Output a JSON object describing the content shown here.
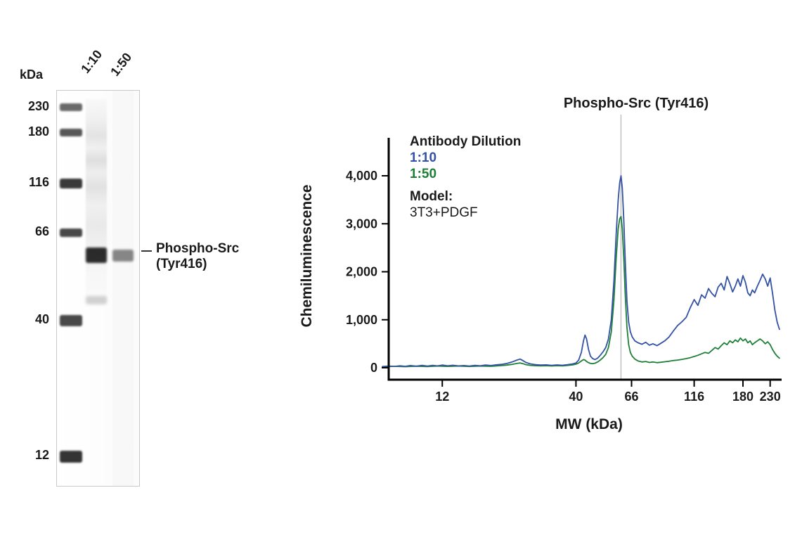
{
  "blot": {
    "kda_label": "kDa",
    "ladder_labels": [
      "230",
      "180",
      "116",
      "66",
      "40",
      "12"
    ],
    "lane_labels": [
      "1:10",
      "1:50"
    ],
    "band_annotation_line1": "Phospho-Src",
    "band_annotation_line2": "(Tyr416)"
  },
  "chart": {
    "title": "Phospho-Src (Tyr416)",
    "ylabel": "Chemiluminescence",
    "xlabel": "MW (kDa)",
    "legend": {
      "heading": "Antibody Dilution",
      "items": [
        {
          "label": "1:10",
          "color": "#3352a3"
        },
        {
          "label": "1:50",
          "color": "#1e8038"
        }
      ],
      "model_heading": "Model:",
      "model_value": "3T3+PDGF"
    }
  },
  "chart_data": {
    "type": "line",
    "title": "Phospho-Src (Tyr416)",
    "xlabel": "MW (kDa)",
    "ylabel": "Chemiluminescence",
    "x_scale": "log",
    "xlim": [
      7.5,
      255
    ],
    "ylim": [
      0,
      4400
    ],
    "grid": false,
    "legend_position": "top-left-inside",
    "marker_line_mw": 60,
    "marker_line_color": "#b3b3b3",
    "axis_color": "#000000",
    "x_ticks": [
      {
        "v": 12,
        "label": "12"
      },
      {
        "v": 40,
        "label": "40"
      },
      {
        "v": 66,
        "label": "66"
      },
      {
        "v": 116,
        "label": "116"
      },
      {
        "v": 180,
        "label": "180"
      },
      {
        "v": 230,
        "label": "230"
      }
    ],
    "y_ticks": [
      {
        "v": 0,
        "label": "0"
      },
      {
        "v": 1000,
        "label": "1,000"
      },
      {
        "v": 2000,
        "label": "2,000"
      },
      {
        "v": 3000,
        "label": "3,000"
      },
      {
        "v": 4000,
        "label": "4,000"
      }
    ],
    "series": [
      {
        "name": "1:50",
        "color": "#1e8038",
        "points": [
          [
            7.0,
            20
          ],
          [
            7.8,
            30
          ],
          [
            8.6,
            22
          ],
          [
            9.5,
            32
          ],
          [
            10.5,
            25
          ],
          [
            11.5,
            35
          ],
          [
            12.6,
            28
          ],
          [
            13.9,
            35
          ],
          [
            15.3,
            26
          ],
          [
            16.9,
            35
          ],
          [
            18.6,
            30
          ],
          [
            20.5,
            45
          ],
          [
            21.5,
            55
          ],
          [
            22.5,
            70
          ],
          [
            23.5,
            90
          ],
          [
            24.2,
            100
          ],
          [
            24.8,
            85
          ],
          [
            25.5,
            65
          ],
          [
            26.5,
            50
          ],
          [
            27.8,
            42
          ],
          [
            29.2,
            38
          ],
          [
            30.6,
            42
          ],
          [
            32.1,
            36
          ],
          [
            33.7,
            42
          ],
          [
            35.4,
            38
          ],
          [
            37.1,
            48
          ],
          [
            38.9,
            60
          ],
          [
            40.0,
            75
          ],
          [
            41.0,
            100
          ],
          [
            42.0,
            140
          ],
          [
            42.8,
            170
          ],
          [
            43.4,
            160
          ],
          [
            44.0,
            130
          ],
          [
            44.8,
            105
          ],
          [
            45.6,
            90
          ],
          [
            46.5,
            85
          ],
          [
            47.5,
            95
          ],
          [
            48.6,
            120
          ],
          [
            49.8,
            160
          ],
          [
            51.0,
            210
          ],
          [
            52.3,
            280
          ],
          [
            53.6,
            420
          ],
          [
            55.0,
            750
          ],
          [
            56.3,
            1400
          ],
          [
            57.5,
            2300
          ],
          [
            58.5,
            2900
          ],
          [
            59.3,
            3100
          ],
          [
            60.0,
            3150
          ],
          [
            60.7,
            2900
          ],
          [
            61.5,
            2300
          ],
          [
            62.4,
            1500
          ],
          [
            63.3,
            850
          ],
          [
            64.3,
            480
          ],
          [
            65.3,
            320
          ],
          [
            66.4,
            240
          ],
          [
            68.0,
            180
          ],
          [
            70.0,
            140
          ],
          [
            72.5,
            120
          ],
          [
            75.0,
            130
          ],
          [
            77.5,
            110
          ],
          [
            80.0,
            120
          ],
          [
            83.0,
            105
          ],
          [
            86.0,
            115
          ],
          [
            89.0,
            125
          ],
          [
            92.5,
            135
          ],
          [
            96.0,
            150
          ],
          [
            100,
            160
          ],
          [
            104,
            175
          ],
          [
            108,
            190
          ],
          [
            112,
            210
          ],
          [
            116,
            235
          ],
          [
            120,
            260
          ],
          [
            124,
            290
          ],
          [
            128,
            320
          ],
          [
            132,
            300
          ],
          [
            136,
            360
          ],
          [
            140,
            420
          ],
          [
            144,
            390
          ],
          [
            148,
            460
          ],
          [
            152,
            520
          ],
          [
            156,
            480
          ],
          [
            160,
            560
          ],
          [
            164,
            520
          ],
          [
            168,
            580
          ],
          [
            172,
            540
          ],
          [
            176,
            620
          ],
          [
            180,
            560
          ],
          [
            184,
            600
          ],
          [
            188,
            520
          ],
          [
            192,
            560
          ],
          [
            196,
            480
          ],
          [
            200,
            520
          ],
          [
            205,
            560
          ],
          [
            210,
            600
          ],
          [
            215,
            560
          ],
          [
            220,
            500
          ],
          [
            225,
            540
          ],
          [
            230,
            480
          ],
          [
            235,
            380
          ],
          [
            240,
            300
          ],
          [
            245,
            240
          ],
          [
            250,
            200
          ]
        ]
      },
      {
        "name": "1:10",
        "color": "#3352a3",
        "points": [
          [
            7.0,
            25
          ],
          [
            7.4,
            35
          ],
          [
            7.8,
            28
          ],
          [
            8.2,
            40
          ],
          [
            8.6,
            30
          ],
          [
            9.0,
            45
          ],
          [
            9.5,
            32
          ],
          [
            10.0,
            48
          ],
          [
            10.5,
            35
          ],
          [
            11.0,
            50
          ],
          [
            11.5,
            38
          ],
          [
            12.0,
            55
          ],
          [
            12.6,
            40
          ],
          [
            13.2,
            52
          ],
          [
            13.9,
            38
          ],
          [
            14.6,
            45
          ],
          [
            15.3,
            35
          ],
          [
            16.1,
            48
          ],
          [
            16.9,
            40
          ],
          [
            17.7,
            55
          ],
          [
            18.6,
            45
          ],
          [
            19.5,
            60
          ],
          [
            20.5,
            70
          ],
          [
            21.5,
            90
          ],
          [
            22.5,
            120
          ],
          [
            23.5,
            160
          ],
          [
            24.2,
            180
          ],
          [
            24.8,
            150
          ],
          [
            25.5,
            110
          ],
          [
            26.5,
            80
          ],
          [
            27.8,
            65
          ],
          [
            29.2,
            55
          ],
          [
            30.6,
            60
          ],
          [
            32.1,
            50
          ],
          [
            33.7,
            58
          ],
          [
            35.4,
            52
          ],
          [
            37.1,
            65
          ],
          [
            38.9,
            80
          ],
          [
            40.0,
            100
          ],
          [
            41.0,
            160
          ],
          [
            42.0,
            320
          ],
          [
            42.8,
            560
          ],
          [
            43.4,
            680
          ],
          [
            44.0,
            600
          ],
          [
            44.8,
            380
          ],
          [
            45.6,
            240
          ],
          [
            46.5,
            190
          ],
          [
            47.5,
            170
          ],
          [
            48.6,
            200
          ],
          [
            49.8,
            260
          ],
          [
            51.0,
            330
          ],
          [
            52.3,
            420
          ],
          [
            53.6,
            600
          ],
          [
            55.0,
            1000
          ],
          [
            56.3,
            1800
          ],
          [
            57.5,
            2800
          ],
          [
            58.5,
            3500
          ],
          [
            59.3,
            3850
          ],
          [
            60.0,
            4000
          ],
          [
            60.7,
            3750
          ],
          [
            61.5,
            3100
          ],
          [
            62.4,
            2200
          ],
          [
            63.3,
            1400
          ],
          [
            64.3,
            950
          ],
          [
            65.3,
            750
          ],
          [
            66.4,
            640
          ],
          [
            68.0,
            560
          ],
          [
            70.0,
            520
          ],
          [
            72.5,
            490
          ],
          [
            75.0,
            530
          ],
          [
            77.5,
            470
          ],
          [
            80.0,
            500
          ],
          [
            83.0,
            460
          ],
          [
            86.0,
            510
          ],
          [
            89.0,
            560
          ],
          [
            92.5,
            640
          ],
          [
            96.0,
            760
          ],
          [
            100,
            880
          ],
          [
            104,
            960
          ],
          [
            108,
            1050
          ],
          [
            112,
            1250
          ],
          [
            116,
            1420
          ],
          [
            120,
            1300
          ],
          [
            124,
            1520
          ],
          [
            128,
            1450
          ],
          [
            132,
            1650
          ],
          [
            136,
            1550
          ],
          [
            140,
            1480
          ],
          [
            144,
            1680
          ],
          [
            148,
            1760
          ],
          [
            152,
            1620
          ],
          [
            156,
            1900
          ],
          [
            160,
            1750
          ],
          [
            164,
            1580
          ],
          [
            168,
            1700
          ],
          [
            172,
            1850
          ],
          [
            176,
            1700
          ],
          [
            180,
            1920
          ],
          [
            184,
            1780
          ],
          [
            188,
            1560
          ],
          [
            192,
            1500
          ],
          [
            196,
            1620
          ],
          [
            200,
            1560
          ],
          [
            205,
            1700
          ],
          [
            210,
            1820
          ],
          [
            215,
            1950
          ],
          [
            220,
            1850
          ],
          [
            225,
            1700
          ],
          [
            230,
            1870
          ],
          [
            235,
            1550
          ],
          [
            240,
            1200
          ],
          [
            245,
            950
          ],
          [
            250,
            800
          ]
        ]
      }
    ]
  }
}
